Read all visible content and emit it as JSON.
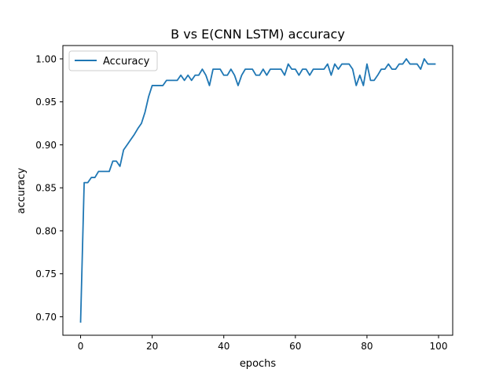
{
  "chart_data": {
    "type": "line",
    "title": "B vs E(CNN LSTM) accuracy",
    "xlabel": "epochs",
    "ylabel": "accuracy",
    "xlim": [
      -4.95,
      103.95
    ],
    "ylim": [
      0.6785,
      1.0155
    ],
    "xticks": [
      0,
      20,
      40,
      60,
      80,
      100
    ],
    "xtick_labels": [
      "0",
      "20",
      "40",
      "60",
      "80",
      "100"
    ],
    "yticks": [
      0.7,
      0.75,
      0.8,
      0.85,
      0.9,
      0.95,
      1.0
    ],
    "ytick_labels": [
      "0.70",
      "0.75",
      "0.80",
      "0.85",
      "0.90",
      "0.95",
      "1.00"
    ],
    "grid": false,
    "legend": {
      "position": "upper-left"
    },
    "series": [
      {
        "name": "Accuracy",
        "color": "#1f77b4",
        "x": [
          0,
          1,
          2,
          3,
          4,
          5,
          6,
          7,
          8,
          9,
          10,
          11,
          12,
          13,
          14,
          15,
          16,
          17,
          18,
          19,
          20,
          21,
          22,
          23,
          24,
          25,
          26,
          27,
          28,
          29,
          30,
          31,
          32,
          33,
          34,
          35,
          36,
          37,
          38,
          39,
          40,
          41,
          42,
          43,
          44,
          45,
          46,
          47,
          48,
          49,
          50,
          51,
          52,
          53,
          54,
          55,
          56,
          57,
          58,
          59,
          60,
          61,
          62,
          63,
          64,
          65,
          66,
          67,
          68,
          69,
          70,
          71,
          72,
          73,
          74,
          75,
          76,
          77,
          78,
          79,
          80,
          81,
          82,
          83,
          84,
          85,
          86,
          87,
          88,
          89,
          90,
          91,
          92,
          93,
          94,
          95,
          96,
          97,
          98,
          99
        ],
        "values": [
          0.694,
          0.856,
          0.856,
          0.862,
          0.862,
          0.869,
          0.869,
          0.869,
          0.869,
          0.881,
          0.881,
          0.875,
          0.894,
          0.9,
          0.906,
          0.912,
          0.919,
          0.925,
          0.938,
          0.956,
          0.969,
          0.969,
          0.969,
          0.969,
          0.975,
          0.975,
          0.975,
          0.975,
          0.981,
          0.975,
          0.981,
          0.975,
          0.981,
          0.981,
          0.988,
          0.981,
          0.969,
          0.988,
          0.988,
          0.988,
          0.981,
          0.981,
          0.988,
          0.981,
          0.969,
          0.981,
          0.988,
          0.988,
          0.988,
          0.981,
          0.981,
          0.988,
          0.981,
          0.988,
          0.988,
          0.988,
          0.988,
          0.981,
          0.994,
          0.988,
          0.988,
          0.981,
          0.988,
          0.988,
          0.981,
          0.988,
          0.988,
          0.988,
          0.988,
          0.994,
          0.981,
          0.994,
          0.988,
          0.994,
          0.994,
          0.994,
          0.988,
          0.969,
          0.981,
          0.969,
          0.994,
          0.975,
          0.975,
          0.981,
          0.988,
          0.988,
          0.994,
          0.988,
          0.988,
          0.994,
          0.994,
          1.0,
          0.994,
          0.994,
          0.994,
          0.988,
          1.0,
          0.994,
          0.994,
          0.994
        ]
      }
    ]
  }
}
